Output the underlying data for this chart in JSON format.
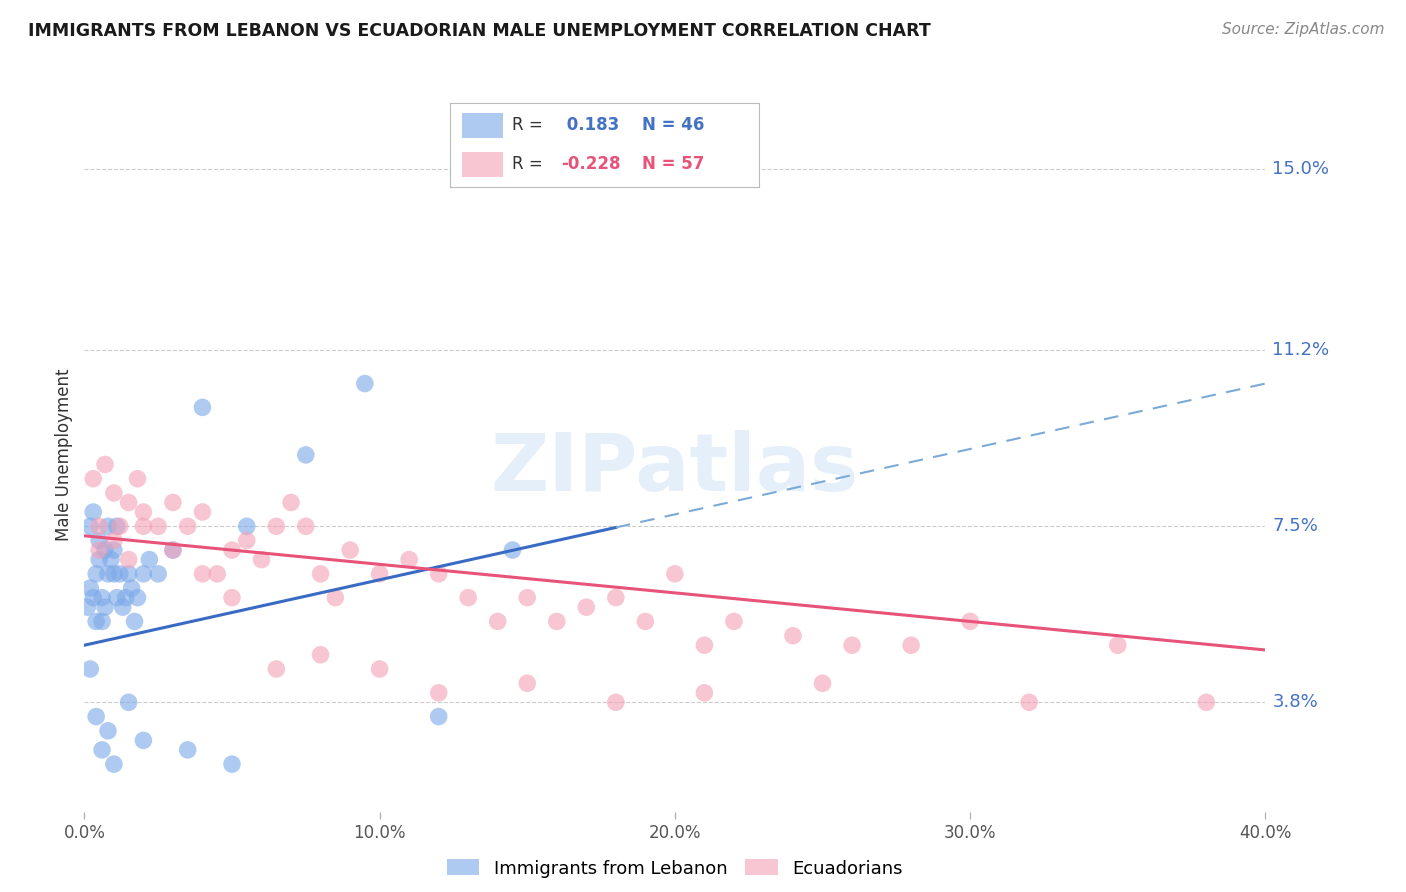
{
  "title": "IMMIGRANTS FROM LEBANON VS ECUADORIAN MALE UNEMPLOYMENT CORRELATION CHART",
  "source": "Source: ZipAtlas.com",
  "ylabel_label": "Male Unemployment",
  "yticks": [
    3.8,
    7.5,
    11.2,
    15.0
  ],
  "xlim": [
    0.0,
    40.0
  ],
  "ylim": [
    1.5,
    16.5
  ],
  "xticks": [
    0,
    10,
    20,
    30,
    40
  ],
  "xtick_labels": [
    "0.0%",
    "10.0%",
    "20.0%",
    "30.0%",
    "40.0%"
  ],
  "series1_label": "Immigrants from Lebanon",
  "series1_color": "#7BA7E8",
  "series1_R": 0.183,
  "series1_N": 46,
  "series2_label": "Ecuadorians",
  "series2_color": "#F4A0B5",
  "series2_R": -0.228,
  "series2_N": 57,
  "watermark": "ZIPatlas",
  "background_color": "#FFFFFF",
  "blue_line_x0": 0.0,
  "blue_line_y0": 5.0,
  "blue_line_x1": 40.0,
  "blue_line_y1": 10.5,
  "blue_solid_end": 18.0,
  "pink_line_x0": 0.0,
  "pink_line_y0": 7.3,
  "pink_line_x1": 40.0,
  "pink_line_y1": 4.9,
  "blue_scatter_x": [
    0.1,
    0.2,
    0.2,
    0.3,
    0.3,
    0.4,
    0.4,
    0.5,
    0.5,
    0.6,
    0.6,
    0.7,
    0.7,
    0.8,
    0.8,
    0.9,
    1.0,
    1.0,
    1.1,
    1.1,
    1.2,
    1.3,
    1.4,
    1.5,
    1.6,
    1.7,
    1.8,
    2.0,
    2.2,
    2.5,
    3.0,
    4.0,
    5.5,
    7.5,
    9.5,
    14.5,
    0.2,
    0.4,
    0.6,
    0.8,
    1.0,
    1.5,
    2.0,
    3.5,
    5.0,
    12.0
  ],
  "blue_scatter_y": [
    5.8,
    6.2,
    7.5,
    6.0,
    7.8,
    6.5,
    5.5,
    6.8,
    7.2,
    5.5,
    6.0,
    7.0,
    5.8,
    6.5,
    7.5,
    6.8,
    6.5,
    7.0,
    7.5,
    6.0,
    6.5,
    5.8,
    6.0,
    6.5,
    6.2,
    5.5,
    6.0,
    6.5,
    6.8,
    6.5,
    7.0,
    10.0,
    7.5,
    9.0,
    10.5,
    7.0,
    4.5,
    3.5,
    2.8,
    3.2,
    2.5,
    3.8,
    3.0,
    2.8,
    2.5,
    3.5
  ],
  "pink_scatter_x": [
    0.3,
    0.5,
    0.7,
    1.0,
    1.2,
    1.5,
    1.8,
    2.0,
    2.5,
    3.0,
    3.5,
    4.0,
    4.5,
    5.0,
    5.5,
    6.0,
    6.5,
    7.0,
    7.5,
    8.0,
    8.5,
    9.0,
    10.0,
    11.0,
    12.0,
    13.0,
    14.0,
    15.0,
    16.0,
    17.0,
    18.0,
    19.0,
    20.0,
    21.0,
    22.0,
    24.0,
    26.0,
    28.0,
    30.0,
    35.0,
    0.5,
    1.0,
    1.5,
    2.0,
    3.0,
    4.0,
    5.0,
    6.5,
    8.0,
    10.0,
    12.0,
    15.0,
    18.0,
    21.0,
    25.0,
    32.0,
    38.0
  ],
  "pink_scatter_y": [
    8.5,
    7.5,
    8.8,
    8.2,
    7.5,
    8.0,
    8.5,
    7.8,
    7.5,
    8.0,
    7.5,
    7.8,
    6.5,
    7.0,
    7.2,
    6.8,
    7.5,
    8.0,
    7.5,
    6.5,
    6.0,
    7.0,
    6.5,
    6.8,
    6.5,
    6.0,
    5.5,
    6.0,
    5.5,
    5.8,
    6.0,
    5.5,
    6.5,
    5.0,
    5.5,
    5.2,
    5.0,
    5.0,
    5.5,
    5.0,
    7.0,
    7.2,
    6.8,
    7.5,
    7.0,
    6.5,
    6.0,
    4.5,
    4.8,
    4.5,
    4.0,
    4.2,
    3.8,
    4.0,
    4.2,
    3.8,
    3.8
  ],
  "legend_R_color_blue": "#4472C4",
  "legend_R_color_pink": "#E8537A",
  "axis_color": "#4472C4",
  "grid_color": "#CCCCCC",
  "title_color": "#1A1A1A",
  "source_color": "#888888"
}
